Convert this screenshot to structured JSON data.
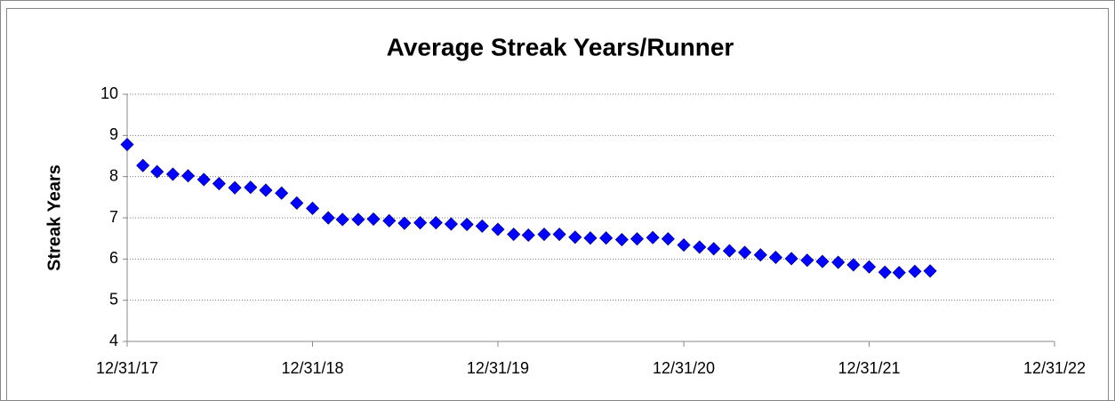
{
  "chart_data": {
    "type": "scatter",
    "title": "Average Streak Years/Runner",
    "y_label": "Streak Years",
    "x": [
      "12/31/17",
      "1/31/18",
      "2/28/18",
      "3/31/18",
      "4/30/18",
      "5/31/18",
      "6/30/18",
      "7/31/18",
      "8/31/18",
      "9/30/18",
      "10/31/18",
      "11/30/18",
      "12/31/18",
      "1/31/19",
      "2/28/19",
      "3/31/19",
      "4/30/19",
      "5/31/19",
      "6/30/19",
      "7/31/19",
      "8/31/19",
      "9/30/19",
      "10/31/19",
      "11/30/19",
      "12/31/19",
      "1/31/20",
      "2/29/20",
      "3/31/20",
      "4/30/20",
      "5/31/20",
      "6/30/20",
      "7/31/20",
      "8/31/20",
      "9/30/20",
      "10/31/20",
      "11/30/20",
      "12/31/20",
      "1/31/21",
      "2/28/21",
      "3/31/21",
      "4/30/21",
      "5/31/21",
      "6/30/21",
      "7/31/21",
      "8/31/21",
      "9/30/21",
      "10/31/21",
      "11/30/21",
      "12/31/21",
      "1/31/22",
      "2/28/22",
      "3/31/22",
      "4/30/22"
    ],
    "values": [
      8.78,
      8.27,
      8.12,
      8.06,
      8.02,
      7.93,
      7.83,
      7.73,
      7.74,
      7.67,
      7.6,
      7.36,
      7.23,
      7.0,
      6.96,
      6.96,
      6.97,
      6.93,
      6.87,
      6.88,
      6.88,
      6.85,
      6.84,
      6.8,
      6.72,
      6.6,
      6.58,
      6.6,
      6.6,
      6.53,
      6.51,
      6.51,
      6.47,
      6.49,
      6.52,
      6.49,
      6.34,
      6.29,
      6.25,
      6.2,
      6.16,
      6.1,
      6.04,
      6.01,
      5.97,
      5.94,
      5.92,
      5.86,
      5.81,
      5.68,
      5.67,
      5.7,
      5.71
    ],
    "color": "#0000ff",
    "xlim": [
      "12/31/17",
      "12/31/22"
    ],
    "xticks": [
      "12/31/17",
      "12/31/18",
      "12/31/19",
      "12/31/20",
      "12/31/21",
      "12/31/22"
    ],
    "ylim": [
      4,
      10
    ],
    "yticks": [
      4,
      5,
      6,
      7,
      8,
      9,
      10
    ],
    "grid": true
  }
}
